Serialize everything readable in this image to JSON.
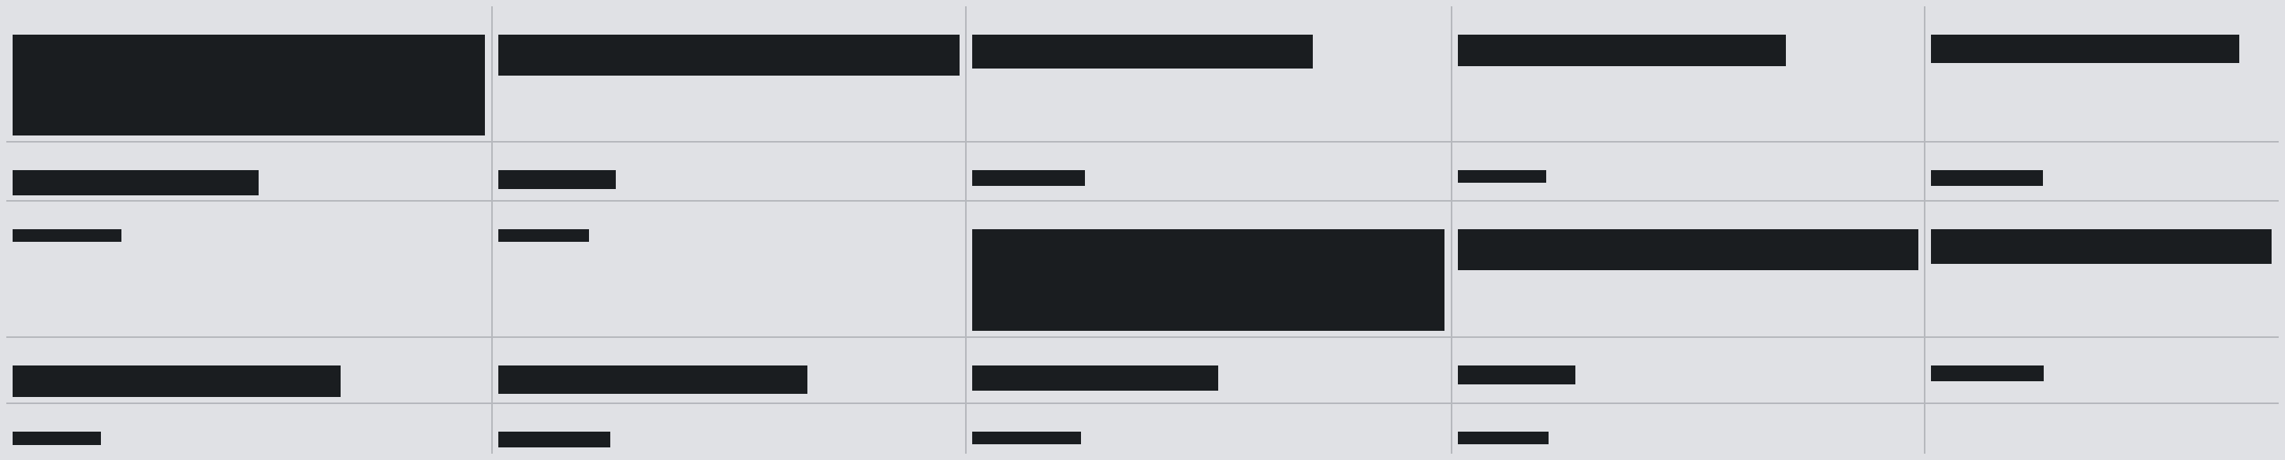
{
  "table": {
    "colors": {
      "background": "#e0e1e5",
      "grid_line": "#b6b8bd",
      "redaction": "#1a1d20"
    },
    "column_count": 5,
    "row_count": 5,
    "cells_redacted": true
  }
}
